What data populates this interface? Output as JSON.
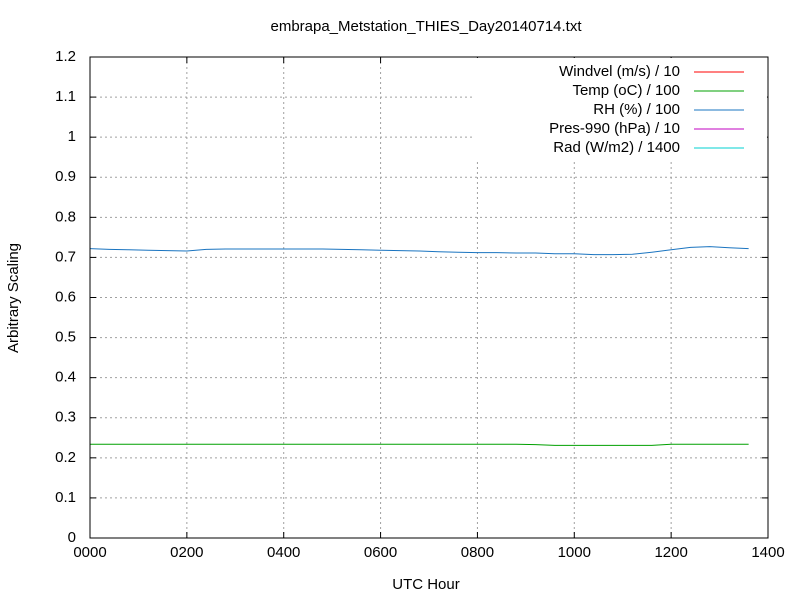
{
  "chart_data": {
    "type": "line",
    "title": "embrapa_Metstation_THIES_Day20140714.txt",
    "x_label": "UTC Hour",
    "y_label": "Arbitrary Scaling",
    "x": [
      0,
      40,
      80,
      120,
      160,
      200,
      240,
      280,
      320,
      360,
      400,
      440,
      480,
      520,
      560,
      600,
      640,
      680,
      720,
      760,
      800,
      840,
      880,
      920,
      960,
      1000,
      1040,
      1080,
      1120,
      1160,
      1200,
      1240,
      1280,
      1320,
      1360
    ],
    "series": [
      {
        "name": "Windvel (m/s) / 10",
        "color": "#ff0000",
        "values": [
          null,
          null,
          null,
          null,
          null,
          null,
          null,
          null,
          null,
          null,
          null,
          null,
          null,
          null,
          null,
          null,
          null,
          null,
          null,
          null,
          null,
          null,
          null,
          null,
          null,
          null,
          null,
          null,
          null,
          null,
          null,
          null,
          null,
          null,
          null
        ]
      },
      {
        "name": "Temp (oC) / 100",
        "color": "#00a000",
        "values": [
          0.234,
          0.234,
          0.234,
          0.234,
          0.234,
          0.234,
          0.234,
          0.234,
          0.234,
          0.234,
          0.234,
          0.234,
          0.234,
          0.234,
          0.234,
          0.234,
          0.234,
          0.234,
          0.234,
          0.234,
          0.234,
          0.234,
          0.234,
          0.233,
          0.231,
          0.231,
          0.231,
          0.231,
          0.231,
          0.231,
          0.234,
          0.234,
          0.234,
          0.234,
          0.234
        ]
      },
      {
        "name": "RH (%) / 100",
        "color": "#1a74c0",
        "values": [
          0.722,
          0.72,
          0.719,
          0.718,
          0.717,
          0.716,
          0.72,
          0.721,
          0.721,
          0.721,
          0.721,
          0.721,
          0.721,
          0.72,
          0.719,
          0.718,
          0.717,
          0.716,
          0.714,
          0.713,
          0.712,
          0.712,
          0.711,
          0.711,
          0.709,
          0.709,
          0.707,
          0.707,
          0.708,
          0.713,
          0.719,
          0.725,
          0.727,
          0.724,
          0.722
        ]
      },
      {
        "name": "Pres-990 (hPa) / 10",
        "color": "#c000c0",
        "values": [
          null,
          null,
          null,
          null,
          null,
          null,
          null,
          null,
          null,
          null,
          null,
          null,
          null,
          null,
          null,
          null,
          null,
          null,
          null,
          null,
          null,
          null,
          null,
          null,
          null,
          null,
          null,
          null,
          null,
          null,
          null,
          null,
          null,
          null,
          null
        ]
      },
      {
        "name": "Rad (W/m2) / 1400",
        "color": "#00d0d0",
        "values": [
          null,
          null,
          null,
          null,
          null,
          null,
          null,
          null,
          null,
          null,
          null,
          null,
          null,
          null,
          null,
          null,
          null,
          null,
          null,
          null,
          null,
          null,
          null,
          null,
          null,
          null,
          null,
          null,
          null,
          null,
          null,
          null,
          null,
          null,
          null
        ]
      }
    ],
    "xlim": [
      0,
      1400
    ],
    "xticks": [
      {
        "value": 0,
        "label": "0000"
      },
      {
        "value": 200,
        "label": "0200"
      },
      {
        "value": 400,
        "label": "0400"
      },
      {
        "value": 600,
        "label": "0600"
      },
      {
        "value": 800,
        "label": "0800"
      },
      1000,
      1200,
      1400
    ],
    "ylim": [
      0,
      1.2
    ],
    "yticks": [
      0,
      0.1,
      0.2,
      0.3,
      0.4,
      0.5,
      0.6,
      0.7,
      0.8,
      0.9,
      1,
      1.1,
      1.2
    ],
    "grid": true,
    "legend_position": "top-right"
  }
}
